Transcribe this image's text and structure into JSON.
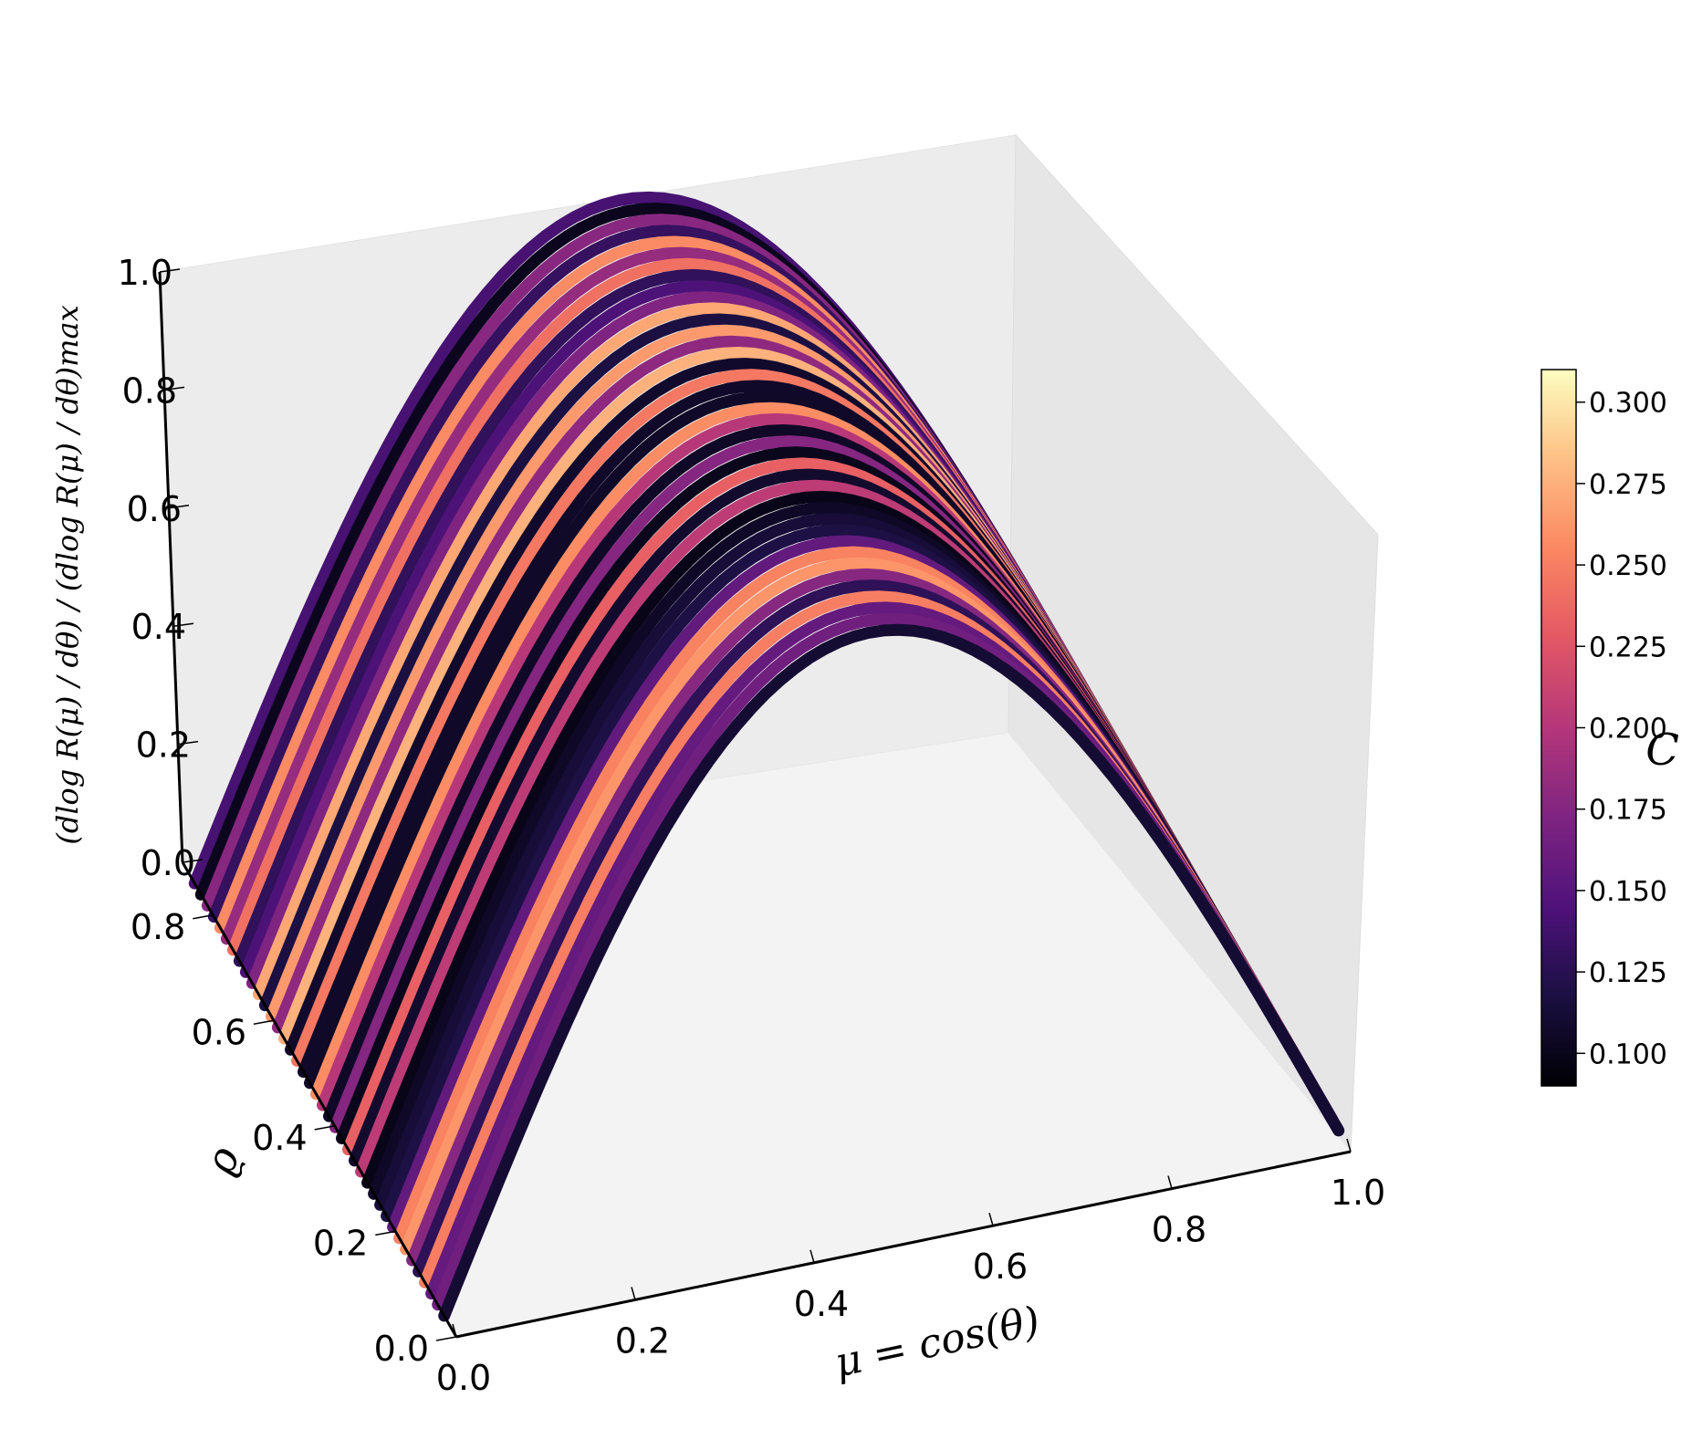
{
  "chart_data": {
    "type": "scatter",
    "projection": "3d",
    "title": "",
    "xlabel": "μ = cos(θ)",
    "ylabel": "ϱ",
    "zlabel": "(dlog R(μ) / dθ) / (dlog R(μ) / dθ)max",
    "xlim": [
      0.0,
      1.0
    ],
    "ylim": [
      0.0,
      0.9
    ],
    "zlim": [
      0.0,
      1.0
    ],
    "x_ticks": [
      "0.0",
      "0.2",
      "0.4",
      "0.6",
      "0.8",
      "1.0"
    ],
    "y_ticks": [
      "0.0",
      "0.2",
      "0.4",
      "0.6",
      "0.8"
    ],
    "z_ticks": [
      "0.0",
      "0.2",
      "0.4",
      "0.6",
      "0.8",
      "1.0"
    ],
    "surface_model": "z = sin(pi * x) per rho slice, scattered points",
    "rho_slices": 40,
    "colormap": "magma",
    "colorbar": {
      "label": "C",
      "min": 0.09,
      "max": 0.31,
      "ticks": [
        "0.100",
        "0.125",
        "0.150",
        "0.175",
        "0.200",
        "0.225",
        "0.250",
        "0.275",
        "0.300"
      ],
      "position": "right"
    },
    "grid": false,
    "legend": "none"
  }
}
